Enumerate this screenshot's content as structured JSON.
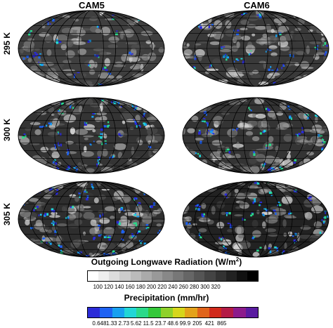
{
  "columns": [
    "CAM5",
    "CAM6"
  ],
  "rows": [
    "295 K",
    "300 K",
    "305 K"
  ],
  "olr": {
    "title": "Outgoing Longwave Radiation (W/m",
    "title_sup": "2",
    "title_end": ")",
    "ticks": [
      "100",
      "120",
      "140",
      "160",
      "180",
      "200",
      "220",
      "240",
      "260",
      "280",
      "300",
      "320"
    ],
    "colors": [
      "#ffffff",
      "#eeeeee",
      "#dddddd",
      "#cccccc",
      "#bbbbbb",
      "#aaaaaa",
      "#999999",
      "#888888",
      "#777777",
      "#666666",
      "#555555",
      "#444444",
      "#333333",
      "#222222",
      "#111111",
      "#000000"
    ]
  },
  "precip": {
    "title": "Precipitation (mm/hr)",
    "ticks": [
      "0.648",
      "1.33",
      "2.73",
      "5.62",
      "11.5",
      "23.7",
      "48.6",
      "99.9",
      "205",
      "421",
      "865"
    ],
    "colors": [
      "#2b2bd8",
      "#1e62f2",
      "#18a0f0",
      "#22d6d6",
      "#2bd98a",
      "#34c83a",
      "#8fd12b",
      "#d6d61c",
      "#e3a21c",
      "#e0641c",
      "#d12a1c",
      "#b41c46",
      "#8c1c8c",
      "#5a1ca0"
    ]
  }
}
